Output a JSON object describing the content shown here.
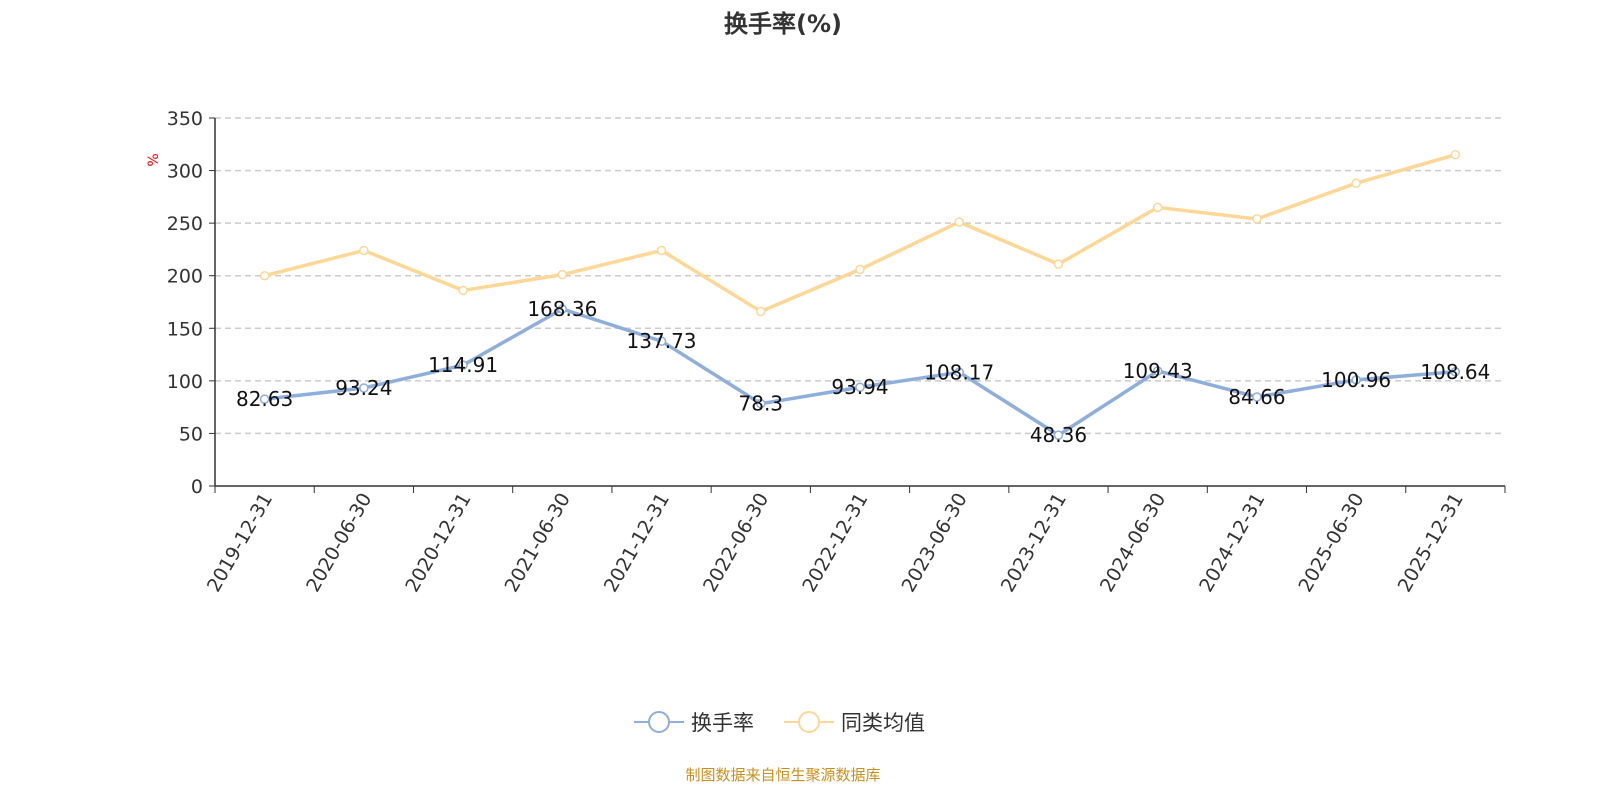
{
  "chart_data": {
    "type": "line",
    "title": "换手率(%)",
    "ylabel": "%",
    "xlabel": "",
    "ylim": [
      0,
      350
    ],
    "yticks": [
      0,
      50,
      100,
      150,
      200,
      250,
      300,
      350
    ],
    "grid": true,
    "legend_position": "bottom",
    "categories": [
      "2019-12-31",
      "2020-06-30",
      "2020-12-31",
      "2021-06-30",
      "2021-12-31",
      "2022-06-30",
      "2022-12-31",
      "2023-06-30",
      "2023-12-31",
      "2024-06-30",
      "2024-12-31",
      "2025-06-30",
      "2025-12-31"
    ],
    "series": [
      {
        "name": "换手率",
        "color": "#8eaedb",
        "show_labels": true,
        "values": [
          82.63,
          93.24,
          114.91,
          168.36,
          137.73,
          78.3,
          93.94,
          108.17,
          48.36,
          109.43,
          84.66,
          100.96,
          108.64
        ]
      },
      {
        "name": "同类均值",
        "color": "#fcd796",
        "show_labels": false,
        "values": [
          200,
          224,
          186,
          201,
          224,
          166,
          206,
          251,
          211,
          265,
          254,
          288,
          315
        ]
      }
    ]
  },
  "source": "制图数据来自恒生聚源数据库"
}
